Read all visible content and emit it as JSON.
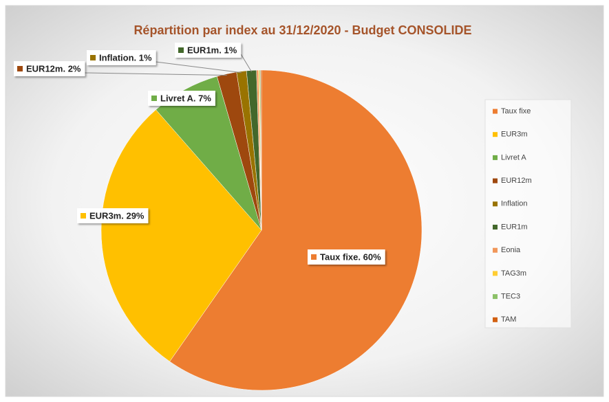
{
  "chart_data": {
    "type": "pie",
    "title": "Répartition  par index au 31/12/2020 - Budget CONSOLIDE",
    "categories": [
      "Taux fixe",
      "EUR3m",
      "Livret A",
      "EUR12m",
      "Inflation",
      "EUR1m",
      "Eonia",
      "TAG3m",
      "TEC3",
      "TAM"
    ],
    "values": [
      60,
      29,
      7,
      2,
      1,
      1,
      0.2,
      0.1,
      0.1,
      0.1
    ],
    "value_labels": [
      "Taux fixe. 60%",
      "EUR3m. 29%",
      "Livret A. 7%",
      "EUR12m. 2%",
      "Inflation. 1%",
      "EUR1m. 1%",
      null,
      null,
      null,
      null
    ],
    "colors": [
      "#ED7D31",
      "#FFC000",
      "#70AD47",
      "#9E480E",
      "#997300",
      "#43682B",
      "#F1975A",
      "#FFCD33",
      "#8CC168",
      "#D26012"
    ],
    "legend": "right"
  }
}
